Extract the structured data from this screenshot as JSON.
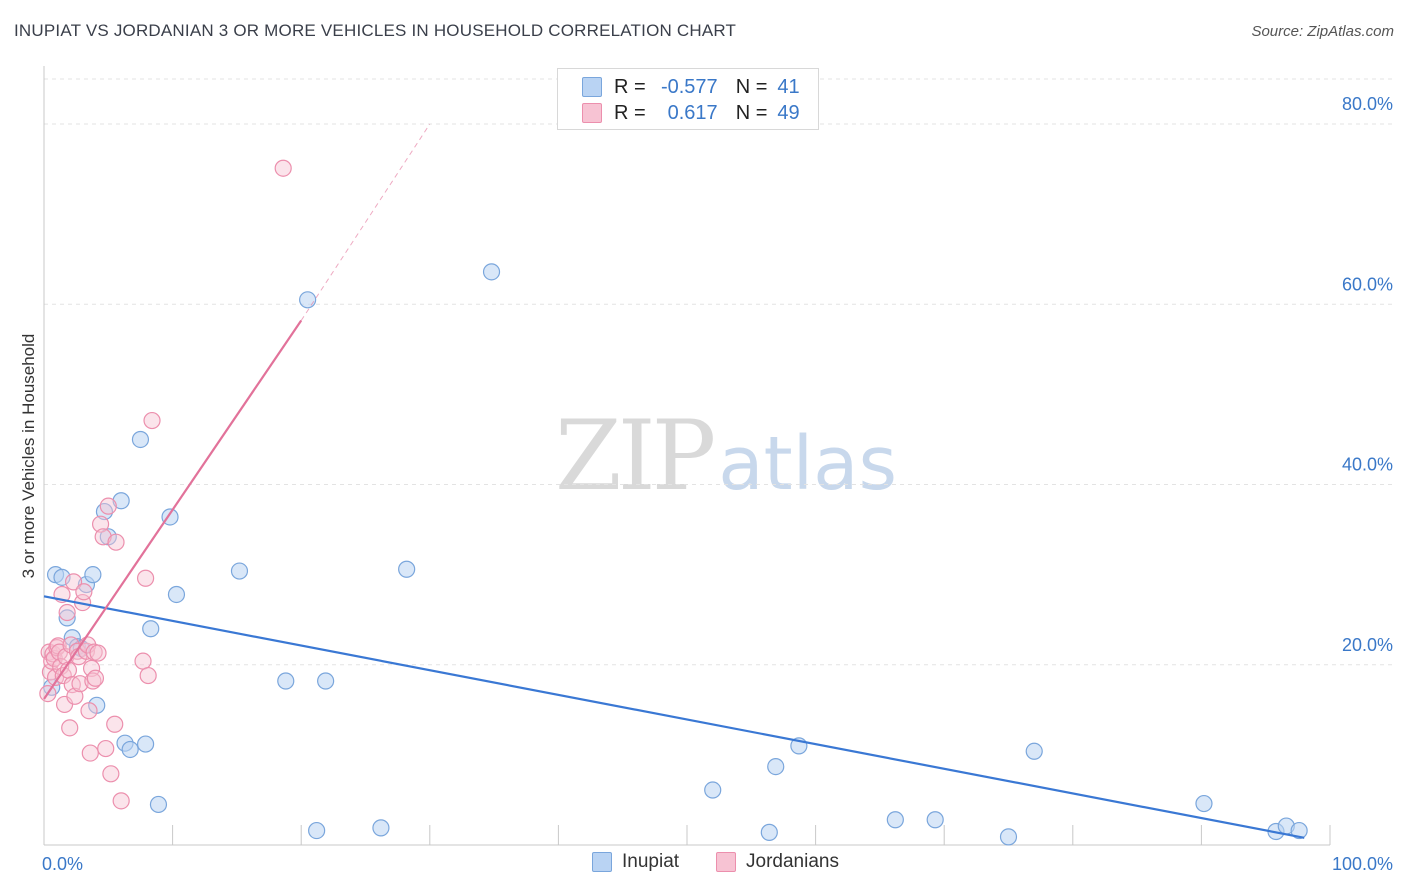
{
  "title": "INUPIAT VS JORDANIAN 3 OR MORE VEHICLES IN HOUSEHOLD CORRELATION CHART",
  "source": "Source: ZipAtlas.com",
  "watermark": {
    "zip": "ZIP",
    "atlas": "atlas"
  },
  "legend_top": {
    "r_label": "R =",
    "n_label": "N =",
    "rows": [
      {
        "series": "Inupiat",
        "r": "-0.577",
        "n": "41"
      },
      {
        "series": "Jordanians",
        "r": "0.617",
        "n": "49"
      }
    ]
  },
  "legend_bottom": [
    {
      "label": "Inupiat"
    },
    {
      "label": "Jordanians"
    }
  ],
  "chart_data": {
    "type": "scatter",
    "title": "INUPIAT VS JORDANIAN 3 OR MORE VEHICLES IN HOUSEHOLD CORRELATION CHART",
    "xlabel": "",
    "ylabel": "3 or more Vehicles in Household",
    "xlim": [
      0,
      100
    ],
    "ylim": [
      0,
      85
    ],
    "x_tick_labels": [
      {
        "value": 0,
        "label": "0.0%"
      },
      {
        "value": 100,
        "label": "100.0%"
      }
    ],
    "y_tick_labels": [
      {
        "value": 20,
        "label": "20.0%"
      },
      {
        "value": 40,
        "label": "40.0%"
      },
      {
        "value": 60,
        "label": "60.0%"
      },
      {
        "value": 80,
        "label": "80.0%"
      }
    ],
    "colors": {
      "inupiat_fill": "#b9d3f3",
      "inupiat_stroke": "#7aa6dc",
      "inupiat_line": "#3a78d4",
      "jordan_fill": "#f7c3d3",
      "jordan_stroke": "#ec8fad",
      "jordan_line": "#e2729a",
      "grid": "#e3e3e3",
      "tick_label": "#3a78c8"
    },
    "series": [
      {
        "name": "Inupiat",
        "r": -0.577,
        "n": 41,
        "trend": {
          "x": [
            0,
            98
          ],
          "y": [
            27.6,
            0.8
          ]
        },
        "points": [
          [
            0.6,
            17.5
          ],
          [
            0.9,
            30
          ],
          [
            1.4,
            29.7
          ],
          [
            1.8,
            25.2
          ],
          [
            2.2,
            23
          ],
          [
            2.6,
            22
          ],
          [
            2.9,
            21.8
          ],
          [
            3.3,
            28.9
          ],
          [
            3.8,
            30
          ],
          [
            4.1,
            15.5
          ],
          [
            4.7,
            37
          ],
          [
            5.0,
            34.2
          ],
          [
            6.0,
            38.2
          ],
          [
            6.3,
            11.3
          ],
          [
            6.7,
            10.6
          ],
          [
            7.5,
            45
          ],
          [
            7.9,
            11.2
          ],
          [
            8.3,
            24
          ],
          [
            8.9,
            4.5
          ],
          [
            9.8,
            36.4
          ],
          [
            10.3,
            27.8
          ],
          [
            15.2,
            30.4
          ],
          [
            18.8,
            18.2
          ],
          [
            20.5,
            60.5
          ],
          [
            21.2,
            1.6
          ],
          [
            21.9,
            18.2
          ],
          [
            26.2,
            1.9
          ],
          [
            28.2,
            30.6
          ],
          [
            34.8,
            63.6
          ],
          [
            52.0,
            6.1
          ],
          [
            56.4,
            1.4
          ],
          [
            56.9,
            8.7
          ],
          [
            58.7,
            11
          ],
          [
            66.2,
            2.8
          ],
          [
            69.3,
            2.8
          ],
          [
            75.0,
            0.9
          ],
          [
            77.0,
            10.4
          ],
          [
            90.2,
            4.6
          ],
          [
            95.8,
            1.5
          ],
          [
            96.6,
            2.1
          ],
          [
            97.6,
            1.6
          ]
        ]
      },
      {
        "name": "Jordanians",
        "r": 0.617,
        "n": 49,
        "trend": {
          "x": [
            0,
            20
          ],
          "y": [
            16.2,
            58.2
          ]
        },
        "trend_dashed": {
          "x": [
            20,
            30
          ],
          "y": [
            58.2,
            80
          ]
        },
        "points": [
          [
            0.3,
            16.8
          ],
          [
            0.4,
            21.4
          ],
          [
            0.5,
            19.2
          ],
          [
            0.6,
            20.4
          ],
          [
            0.7,
            21.2
          ],
          [
            0.8,
            20.7
          ],
          [
            0.9,
            18.6
          ],
          [
            1.0,
            21.9
          ],
          [
            1.1,
            22.1
          ],
          [
            1.2,
            21.4
          ],
          [
            1.3,
            19.8
          ],
          [
            1.4,
            27.8
          ],
          [
            1.5,
            18.8
          ],
          [
            1.6,
            15.6
          ],
          [
            1.7,
            20.9
          ],
          [
            1.8,
            25.8
          ],
          [
            1.9,
            19.4
          ],
          [
            2.0,
            13
          ],
          [
            2.1,
            22.2
          ],
          [
            2.2,
            17.8
          ],
          [
            2.3,
            29.2
          ],
          [
            2.4,
            16.5
          ],
          [
            2.6,
            21.5
          ],
          [
            2.7,
            20.9
          ],
          [
            2.8,
            17.9
          ],
          [
            3.0,
            26.9
          ],
          [
            3.1,
            28.1
          ],
          [
            3.3,
            21.5
          ],
          [
            3.4,
            22.2
          ],
          [
            3.5,
            14.9
          ],
          [
            3.6,
            10.2
          ],
          [
            3.7,
            19.6
          ],
          [
            3.8,
            18.2
          ],
          [
            3.9,
            21.4
          ],
          [
            4.0,
            18.5
          ],
          [
            4.2,
            21.3
          ],
          [
            4.4,
            35.6
          ],
          [
            4.6,
            34.2
          ],
          [
            4.8,
            10.7
          ],
          [
            5.0,
            37.6
          ],
          [
            5.2,
            7.9
          ],
          [
            5.5,
            13.4
          ],
          [
            5.6,
            33.6
          ],
          [
            6.0,
            4.9
          ],
          [
            7.7,
            20.4
          ],
          [
            7.9,
            29.6
          ],
          [
            8.1,
            18.8
          ],
          [
            8.4,
            47.1
          ],
          [
            18.6,
            75.1
          ]
        ]
      }
    ]
  }
}
